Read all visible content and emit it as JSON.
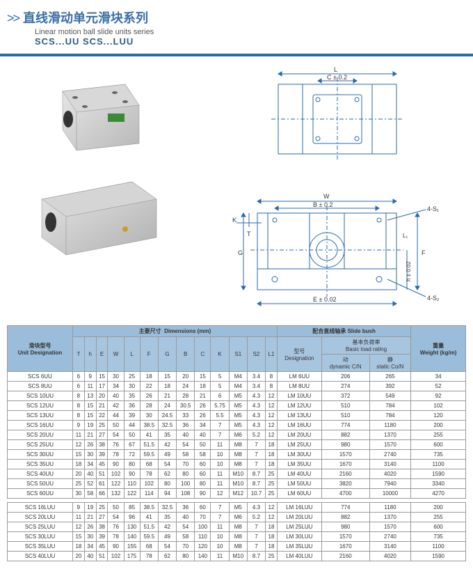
{
  "title_cn": "直线滑动单元滑块系列",
  "title_en": "Linear motion ball slide units series",
  "subtitle": "SCS...UU    SCS...LUU",
  "colors": {
    "accent": "#2a6aa8",
    "header_bg": "#a8c5e0",
    "header_grp_bg": "#9abddb",
    "border": "#999999"
  },
  "drawing_top": {
    "labels": {
      "L": "L",
      "C": "C ± 0.2"
    }
  },
  "drawing_front": {
    "labels": {
      "W": "W",
      "B": "B ± 0.2",
      "K": "K",
      "T": "T",
      "G": "G",
      "E": "E ± 0.02",
      "h": "h ± 0.02",
      "F": "F",
      "L1": "L₁",
      "S1": "4-S₁",
      "S2": "4-S₂"
    }
  },
  "table": {
    "groups": {
      "designation_cn": "滑块型号",
      "designation_en": "Unit Designation",
      "dims_cn": "主要尺寸",
      "dims_en": "Dimensions  (mm)",
      "bush_cn": "配合直线轴承",
      "bush_en": "Slide bush",
      "weight_cn": "重量",
      "weight_en": "Weight (kg/m)",
      "bush_model_cn": "型号",
      "bush_model_en": "Designation",
      "load_cn": "基本负荷率",
      "load_en": "Basic load rating",
      "dyn_cn": "动",
      "dyn_en": "dynamic C/N",
      "stat_cn": "静",
      "stat_en": "static Co/N"
    },
    "cols": [
      "T",
      "h",
      "E",
      "W",
      "L",
      "F",
      "G",
      "B",
      "C",
      "K",
      "S1",
      "S2",
      "L1"
    ],
    "rows": [
      {
        "d": "SCS 6UU",
        "v": [
          "6",
          "9",
          "15",
          "30",
          "25",
          "18",
          "15",
          "20",
          "15",
          "5",
          "M4",
          "3.4",
          "8"
        ],
        "bd": "LM 6UU",
        "dyn": "206",
        "st": "265",
        "w": "34"
      },
      {
        "d": "SCS 8UU",
        "v": [
          "6",
          "11",
          "17",
          "34",
          "30",
          "22",
          "18",
          "24",
          "18",
          "5",
          "M4",
          "3.4",
          "8"
        ],
        "bd": "LM 8UU",
        "dyn": "274",
        "st": "392",
        "w": "52"
      },
      {
        "d": "SCS 10UU",
        "v": [
          "8",
          "13",
          "20",
          "40",
          "35",
          "26",
          "21",
          "28",
          "21",
          "6",
          "M5",
          "4.3",
          "12"
        ],
        "bd": "LM 10UU",
        "dyn": "372",
        "st": "549",
        "w": "92"
      },
      {
        "d": "SCS 12UU",
        "v": [
          "8",
          "15",
          "21",
          "42",
          "36",
          "28",
          "24",
          "30.5",
          "26",
          "5.75",
          "M5",
          "4.3",
          "12"
        ],
        "bd": "LM 12UU",
        "dyn": "510",
        "st": "784",
        "w": "102"
      },
      {
        "d": "SCS 13UU",
        "v": [
          "8",
          "15",
          "22",
          "44",
          "39",
          "30",
          "24.5",
          "33",
          "26",
          "5.5",
          "M5",
          "4.3",
          "12"
        ],
        "bd": "LM 13UU",
        "dyn": "510",
        "st": "784",
        "w": "120"
      },
      {
        "d": "SCS 16UU",
        "v": [
          "9",
          "19",
          "25",
          "50",
          "44",
          "38.5",
          "32.5",
          "36",
          "34",
          "7",
          "M5",
          "4.3",
          "12"
        ],
        "bd": "LM 16UU",
        "dyn": "774",
        "st": "1180",
        "w": "200"
      },
      {
        "d": "SCS 20UU",
        "v": [
          "11",
          "21",
          "27",
          "54",
          "50",
          "41",
          "35",
          "40",
          "40",
          "7",
          "M6",
          "5.2",
          "12"
        ],
        "bd": "LM 20UU",
        "dyn": "882",
        "st": "1370",
        "w": "255"
      },
      {
        "d": "SCS 25UU",
        "v": [
          "12",
          "26",
          "38",
          "76",
          "67",
          "51.5",
          "42",
          "54",
          "50",
          "11",
          "M8",
          "7",
          "18"
        ],
        "bd": "LM 25UU",
        "dyn": "980",
        "st": "1570",
        "w": "600"
      },
      {
        "d": "SCS 30UU",
        "v": [
          "15",
          "30",
          "39",
          "78",
          "72",
          "59.5",
          "49",
          "58",
          "58",
          "10",
          "M8",
          "7",
          "18"
        ],
        "bd": "LM 30UU",
        "dyn": "1570",
        "st": "2740",
        "w": "735"
      },
      {
        "d": "SCS 35UU",
        "v": [
          "18",
          "34",
          "45",
          "90",
          "80",
          "68",
          "54",
          "70",
          "60",
          "10",
          "M8",
          "7",
          "18"
        ],
        "bd": "LM 35UU",
        "dyn": "1670",
        "st": "3140",
        "w": "1100"
      },
      {
        "d": "SCS 40UU",
        "v": [
          "20",
          "40",
          "51",
          "102",
          "90",
          "78",
          "62",
          "80",
          "60",
          "11",
          "M10",
          "8.7",
          "25"
        ],
        "bd": "LM 40UU",
        "dyn": "2160",
        "st": "4020",
        "w": "1590"
      },
      {
        "d": "SCS 50UU",
        "v": [
          "25",
          "52",
          "61",
          "122",
          "110",
          "102",
          "80",
          "100",
          "80",
          "11",
          "M10",
          "8.7",
          "25"
        ],
        "bd": "LM 50UU",
        "dyn": "3820",
        "st": "7940",
        "w": "3340"
      },
      {
        "d": "SCS 60UU",
        "v": [
          "30",
          "58",
          "66",
          "132",
          "122",
          "114",
          "94",
          "108",
          "90",
          "12",
          "M12",
          "10.7",
          "25"
        ],
        "bd": "LM 60UU",
        "dyn": "4700",
        "st": "10000",
        "w": "4270"
      }
    ],
    "rows2": [
      {
        "d": "SCS 16LUU",
        "v": [
          "9",
          "19",
          "25",
          "50",
          "85",
          "38.5",
          "32.5",
          "36",
          "60",
          "7",
          "M5",
          "4.3",
          "12"
        ],
        "bd": "LM 16LUU",
        "dyn": "774",
        "st": "1180",
        "w": "200"
      },
      {
        "d": "SCS 20LUU",
        "v": [
          "11",
          "21",
          "27",
          "54",
          "96",
          "41",
          "35",
          "40",
          "70",
          "7",
          "M6",
          "5.2",
          "12"
        ],
        "bd": "LM 20LUU",
        "dyn": "882",
        "st": "1370",
        "w": "255"
      },
      {
        "d": "SCS 25LUU",
        "v": [
          "12",
          "26",
          "38",
          "76",
          "130",
          "51.5",
          "42",
          "54",
          "100",
          "11",
          "M8",
          "7",
          "18"
        ],
        "bd": "LM 25LUU",
        "dyn": "980",
        "st": "1570",
        "w": "600"
      },
      {
        "d": "SCS 30LUU",
        "v": [
          "15",
          "30",
          "39",
          "78",
          "140",
          "59.5",
          "49",
          "58",
          "110",
          "10",
          "M8",
          "7",
          "18"
        ],
        "bd": "LM 30LUU",
        "dyn": "1570",
        "st": "2740",
        "w": "735"
      },
      {
        "d": "SCS 35LUU",
        "v": [
          "18",
          "34",
          "45",
          "90",
          "155",
          "68",
          "54",
          "70",
          "120",
          "10",
          "M8",
          "7",
          "18"
        ],
        "bd": "LM 35LUU",
        "dyn": "1670",
        "st": "3140",
        "w": "1100"
      },
      {
        "d": "SCS 40LUU",
        "v": [
          "20",
          "40",
          "51",
          "102",
          "175",
          "78",
          "62",
          "80",
          "140",
          "11",
          "M10",
          "8.7",
          "25"
        ],
        "bd": "LM 40LUU",
        "dyn": "2160",
        "st": "4020",
        "w": "1590"
      }
    ]
  }
}
